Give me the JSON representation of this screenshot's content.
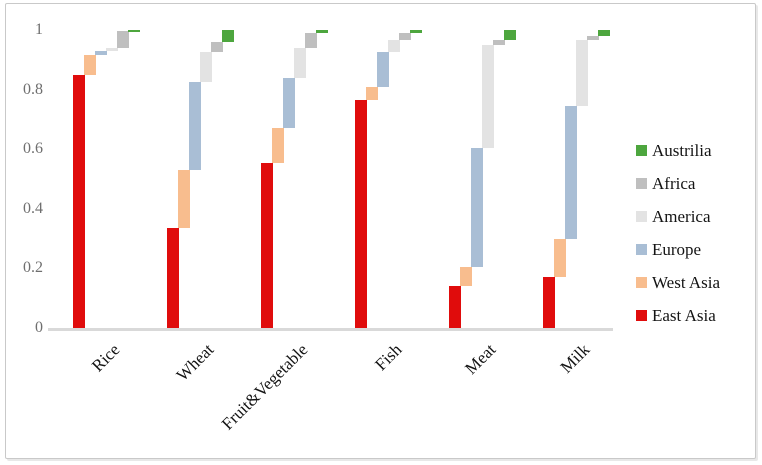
{
  "chart_data": {
    "type": "bar",
    "variant": "stacked-cascade-column",
    "title": "",
    "xlabel": "",
    "ylabel": "",
    "ylim": [
      0,
      1
    ],
    "grid": false,
    "legend_position": "right",
    "categories": [
      "Rice",
      "Wheat",
      "Fruit&Vegetable",
      "Fish",
      "Meat",
      "Milk"
    ],
    "series": [
      {
        "name": "East Asia",
        "color": "#e00c0c",
        "values": [
          0.85,
          0.335,
          0.555,
          0.765,
          0.14,
          0.17
        ]
      },
      {
        "name": "West Asia",
        "color": "#f8bd8e",
        "values": [
          0.065,
          0.195,
          0.115,
          0.045,
          0.065,
          0.13
        ]
      },
      {
        "name": "Europe",
        "color": "#a9bed5",
        "values": [
          0.013,
          0.295,
          0.17,
          0.115,
          0.4,
          0.445
        ]
      },
      {
        "name": "America",
        "color": "#e3e3e3",
        "values": [
          0.012,
          0.1,
          0.1,
          0.04,
          0.345,
          0.22
        ]
      },
      {
        "name": "Africa",
        "color": "#bfbfbf",
        "values": [
          0.055,
          0.035,
          0.05,
          0.025,
          0.015,
          0.015
        ]
      },
      {
        "name": "Austrilia",
        "color": "#4da63e",
        "values": [
          0.005,
          0.04,
          0.01,
          0.01,
          0.035,
          0.02
        ]
      }
    ],
    "y_axis": {
      "ticks": [
        {
          "value": 0,
          "label": "0"
        },
        {
          "value": 0.2,
          "label": "0.2"
        },
        {
          "value": 0.4,
          "label": "0.4"
        },
        {
          "value": 0.6,
          "label": "0.6"
        },
        {
          "value": 0.8,
          "label": "0.8"
        },
        {
          "value": 1,
          "label": "1"
        }
      ]
    },
    "legend": {
      "items": [
        {
          "label": "Austrilia",
          "color": "#4da63e"
        },
        {
          "label": "Africa",
          "color": "#bfbfbf"
        },
        {
          "label": "America",
          "color": "#e3e3e3"
        },
        {
          "label": "Europe",
          "color": "#a9bed5"
        },
        {
          "label": "West Asia",
          "color": "#f8bd8e"
        },
        {
          "label": "East Asia",
          "color": "#e00c0c"
        }
      ]
    }
  }
}
